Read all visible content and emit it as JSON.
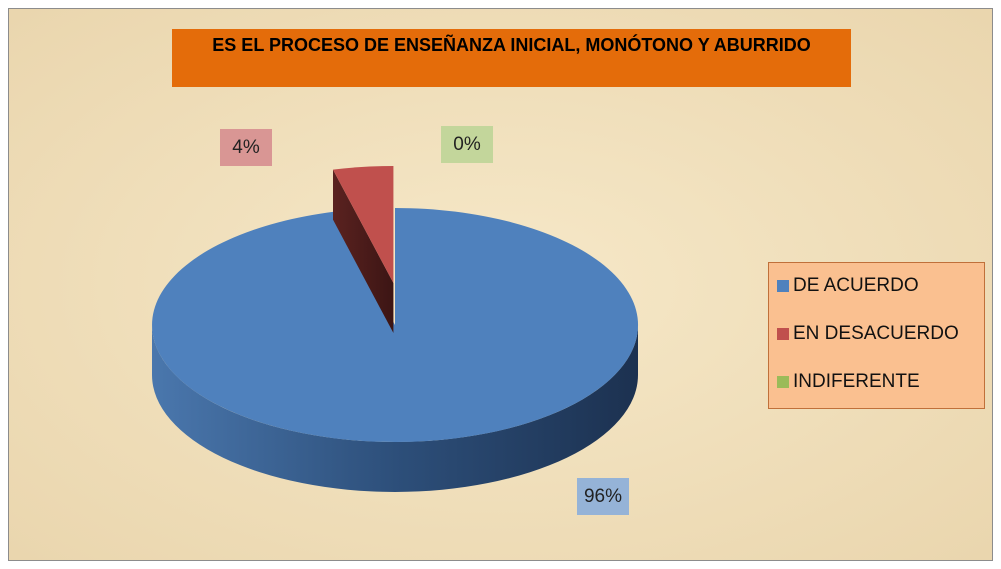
{
  "chart_data": {
    "type": "pie3d",
    "title": "ES EL PROCESO DE ENSEÑANZA INICIAL, MONÓTONO Y ABURRIDO",
    "categories": [
      "DE ACUERDO",
      "EN DESACUERDO",
      "INDIFERENTE"
    ],
    "values": [
      96,
      4,
      0
    ],
    "value_labels": [
      "96%",
      "4%",
      "0%"
    ],
    "colors": [
      "#4f81bd",
      "#c0504d",
      "#9bbb59"
    ],
    "legend": "right"
  }
}
